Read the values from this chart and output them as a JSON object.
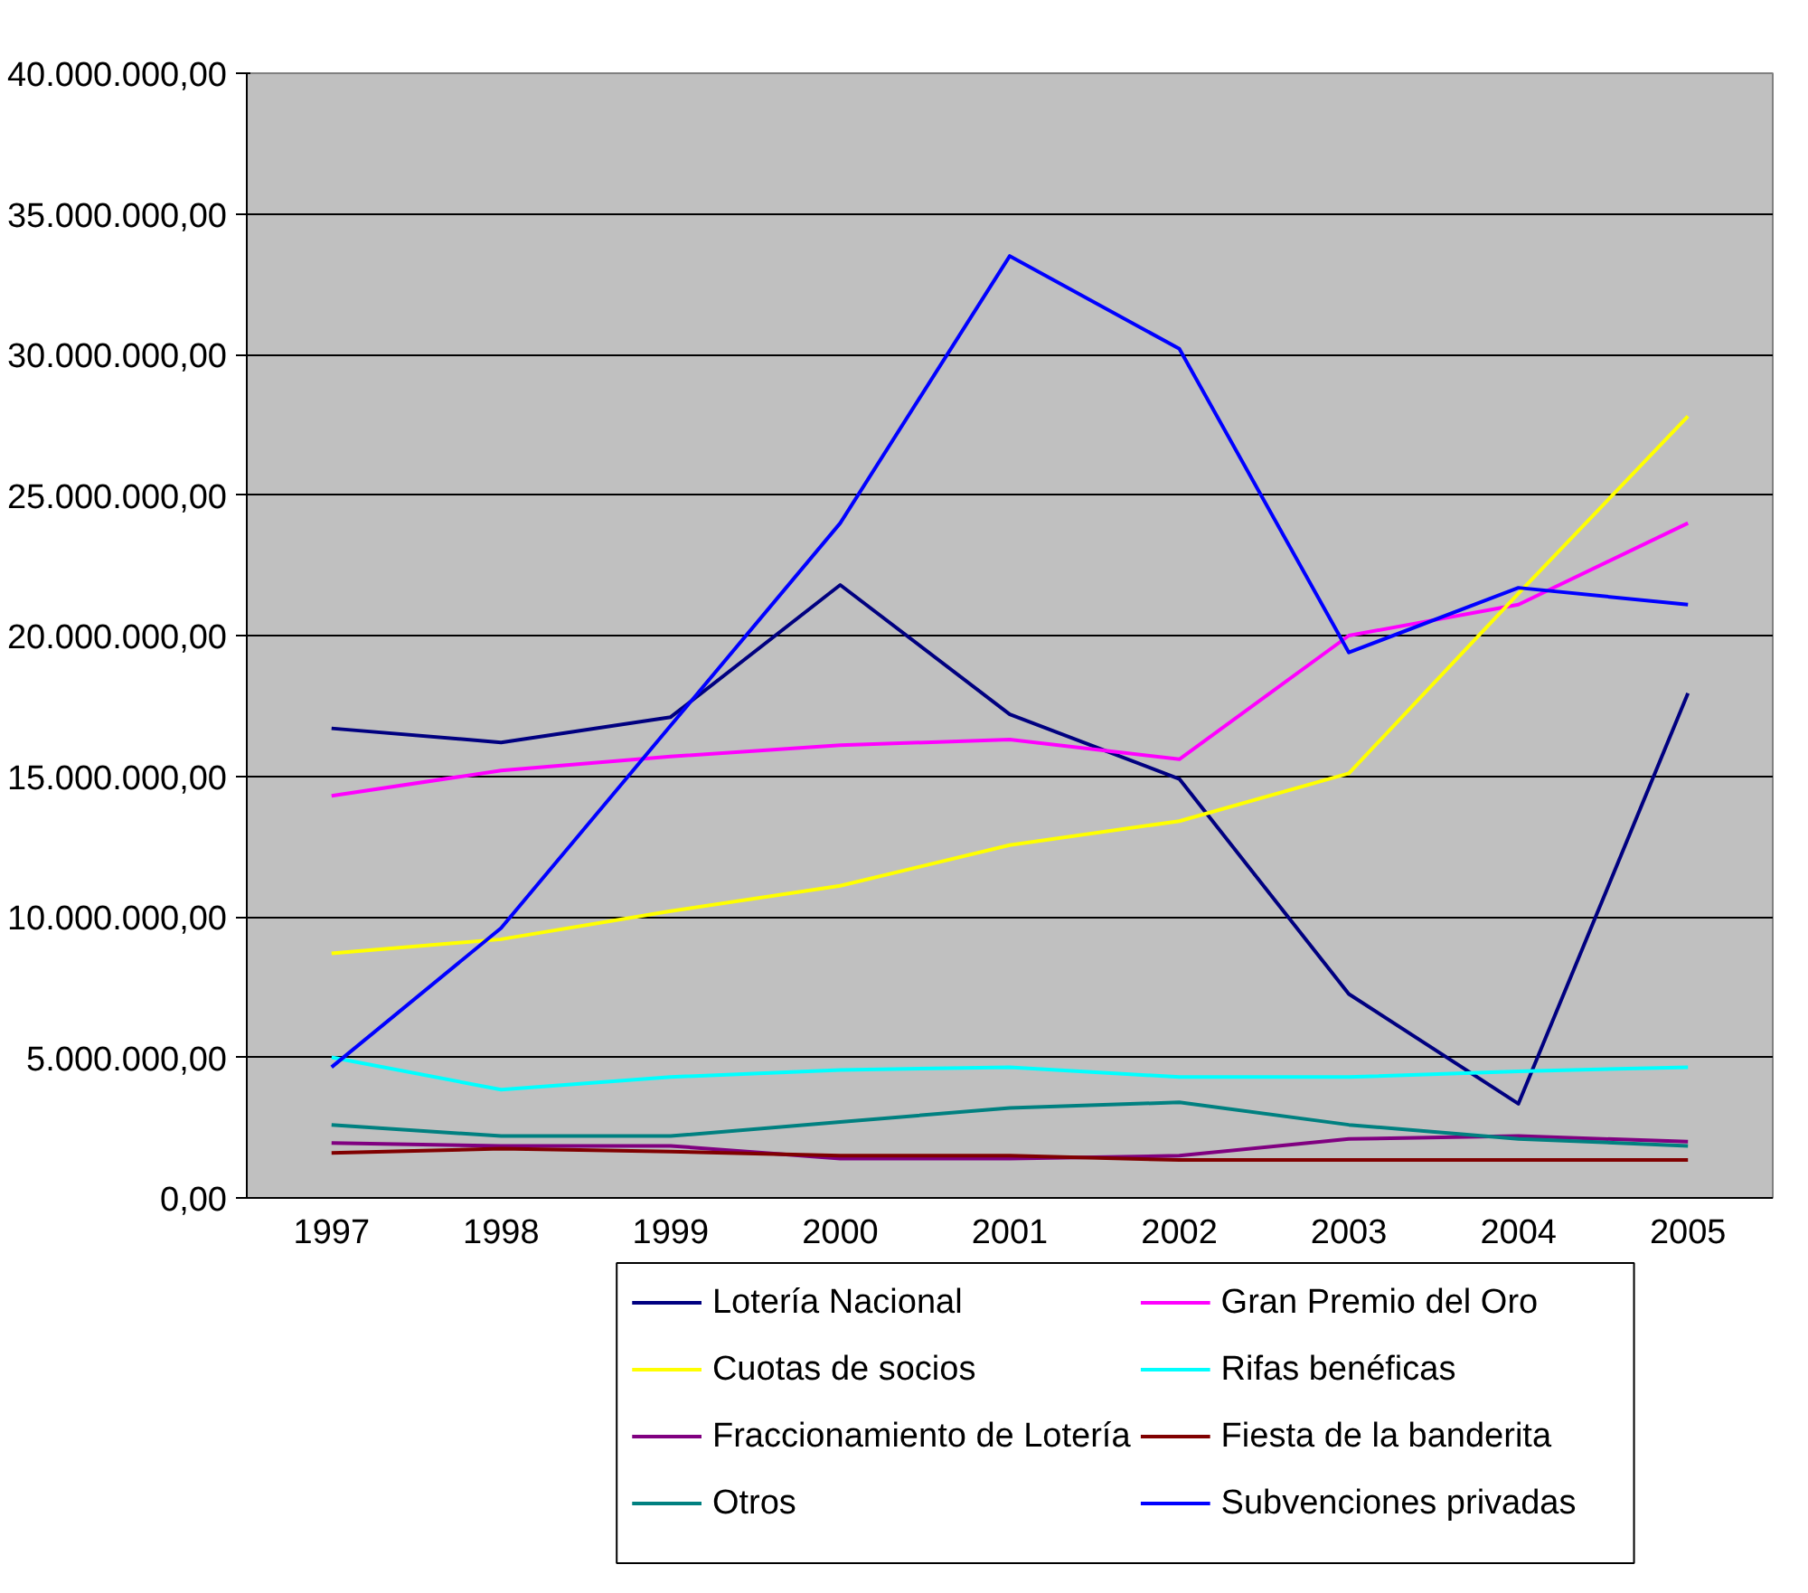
{
  "chart_data": {
    "type": "line",
    "categories": [
      "1997",
      "1998",
      "1999",
      "2000",
      "2001",
      "2002",
      "2003",
      "2004",
      "2005"
    ],
    "ylim": [
      0,
      40000000
    ],
    "yticks": [
      {
        "value": 0,
        "label": "0,00"
      },
      {
        "value": 5000000,
        "label": "5.000.000,00"
      },
      {
        "value": 10000000,
        "label": "10.000.000,00"
      },
      {
        "value": 15000000,
        "label": "15.000.000,00"
      },
      {
        "value": 20000000,
        "label": "20.000.000,00"
      },
      {
        "value": 25000000,
        "label": "25.000.000,00"
      },
      {
        "value": 30000000,
        "label": "30.000.000,00"
      },
      {
        "value": 35000000,
        "label": "35.000.000,00"
      },
      {
        "value": 40000000,
        "label": "40.000.000,00"
      }
    ],
    "grid": "y",
    "legend": "bottom",
    "marker": "none",
    "line_style": "solid",
    "series": [
      {
        "name": "Lotería Nacional",
        "color": "#000080",
        "values": [
          16700000,
          16200000,
          17100000,
          21800000,
          17200000,
          14900000,
          7250000,
          3350000,
          17950000
        ]
      },
      {
        "name": "Gran Premio del Oro",
        "color": "#ff00ff",
        "values": [
          14300000,
          15200000,
          15700000,
          16100000,
          16300000,
          15600000,
          20000000,
          21100000,
          24000000
        ]
      },
      {
        "name": "Cuotas de socios",
        "color": "#ffff00",
        "values": [
          8700000,
          9200000,
          10200000,
          11100000,
          12550000,
          13400000,
          15100000,
          21500000,
          27800000
        ]
      },
      {
        "name": "Rifas benéficas",
        "color": "#00ffff",
        "values": [
          5000000,
          3850000,
          4300000,
          4550000,
          4650000,
          4300000,
          4300000,
          4500000,
          4650000
        ]
      },
      {
        "name": "Fraccionamiento de Lotería",
        "color": "#800080",
        "values": [
          1950000,
          1850000,
          1850000,
          1400000,
          1400000,
          1500000,
          2100000,
          2200000,
          2000000
        ]
      },
      {
        "name": "Fiesta de la banderita",
        "color": "#800000",
        "values": [
          1600000,
          1750000,
          1650000,
          1500000,
          1500000,
          1350000,
          1350000,
          1350000,
          1350000
        ]
      },
      {
        "name": "Otros",
        "color": "#008080",
        "values": [
          2600000,
          2200000,
          2200000,
          2700000,
          3200000,
          3400000,
          2600000,
          2100000,
          1850000
        ]
      },
      {
        "name": "Subvenciones privadas",
        "color": "#0000ff",
        "values": [
          4650000,
          9600000,
          16800000,
          24000000,
          33500000,
          30200000,
          19400000,
          21700000,
          21100000
        ]
      }
    ]
  }
}
